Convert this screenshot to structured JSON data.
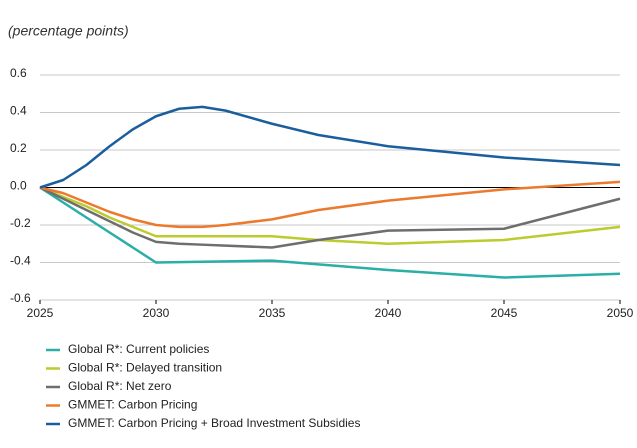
{
  "chart_data": {
    "type": "line",
    "subtitle": "(percentage points)",
    "x": [
      2025,
      2026,
      2027,
      2028,
      2029,
      2030,
      2031,
      2032,
      2033,
      2035,
      2037,
      2040,
      2045,
      2050
    ],
    "xlim": [
      2025,
      2050
    ],
    "xticks": [
      2025,
      2030,
      2035,
      2040,
      2045,
      2050
    ],
    "ylim": [
      -0.6,
      0.6
    ],
    "yticks": [
      -0.6,
      -0.4,
      -0.2,
      {
        "value": 0,
        "label": "0.0"
      },
      0.2,
      0.4,
      0.6
    ],
    "grid": true,
    "series": [
      {
        "name": "Global R*: Current policies",
        "color": "#2aaea6",
        "values": [
          0,
          -0.08,
          -0.16,
          -0.24,
          -0.32,
          -0.4,
          -0.398,
          -0.396,
          -0.394,
          -0.39,
          -0.41,
          -0.44,
          -0.48,
          -0.46
        ]
      },
      {
        "name": "Global R*: Delayed transition",
        "color": "#bccb2e",
        "values": [
          0,
          -0.05,
          -0.1,
          -0.16,
          -0.21,
          -0.26,
          -0.26,
          -0.26,
          -0.26,
          -0.26,
          -0.28,
          -0.3,
          -0.28,
          -0.21
        ]
      },
      {
        "name": "Global R*: Net zero",
        "color": "#6e6e6e",
        "values": [
          0,
          -0.06,
          -0.12,
          -0.18,
          -0.24,
          -0.29,
          -0.3,
          -0.305,
          -0.31,
          -0.32,
          -0.28,
          -0.23,
          -0.22,
          -0.06
        ]
      },
      {
        "name": "GMMET: Carbon Pricing",
        "color": "#ec7a2e",
        "values": [
          0,
          -0.03,
          -0.08,
          -0.13,
          -0.17,
          -0.2,
          -0.21,
          -0.21,
          -0.2,
          -0.17,
          -0.12,
          -0.07,
          -0.01,
          0.03
        ]
      },
      {
        "name": "GMMET: Carbon Pricing + Broad Investment Subsidies",
        "color": "#1a5e9e",
        "values": [
          0,
          0.04,
          0.12,
          0.22,
          0.31,
          0.38,
          0.42,
          0.43,
          0.41,
          0.34,
          0.28,
          0.22,
          0.16,
          0.12
        ]
      }
    ]
  }
}
